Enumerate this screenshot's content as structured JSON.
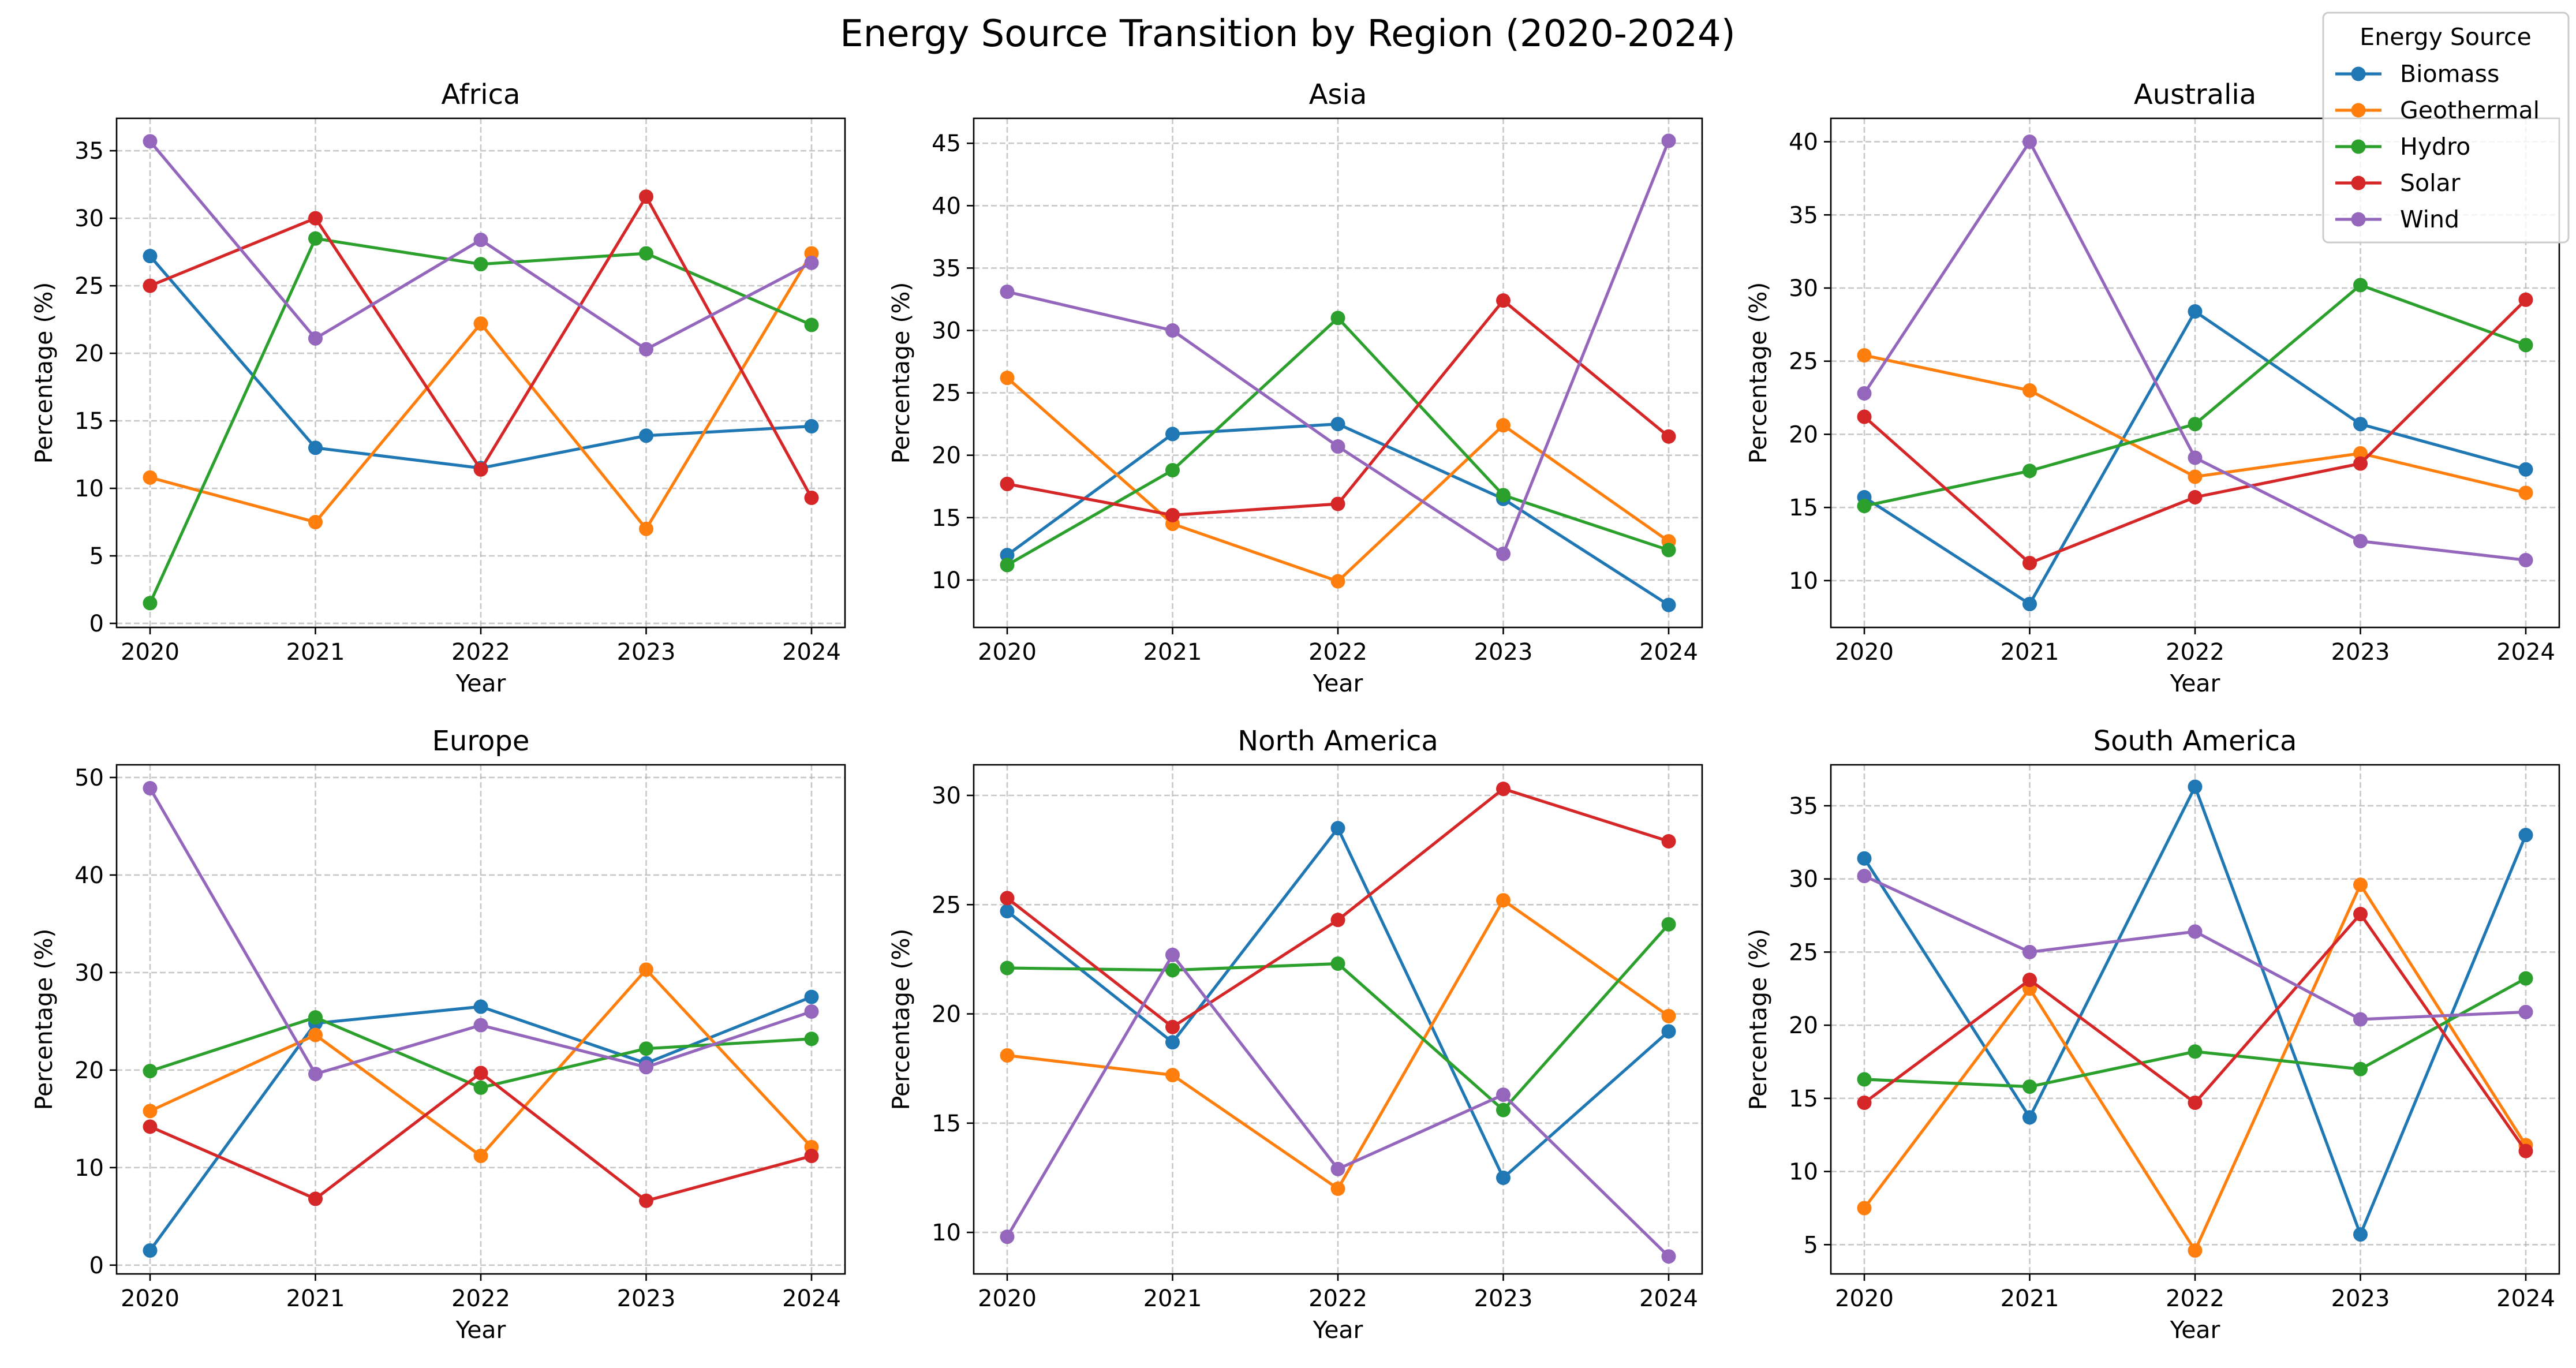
{
  "figure": {
    "title": "Energy Source Transition by Region (2020-2024)"
  },
  "legend": {
    "title": "Energy Source",
    "placement": "top-right",
    "entries": [
      "Biomass",
      "Geothermal",
      "Hydro",
      "Solar",
      "Wind"
    ]
  },
  "colors": {
    "Biomass": "#1f77b4",
    "Geothermal": "#ff7f0e",
    "Hydro": "#2ca02c",
    "Solar": "#d62728",
    "Wind": "#9467bd",
    "grid": "#b0b0b0"
  },
  "chart_data": [
    {
      "type": "line",
      "title": "Africa",
      "xlabel": "Year",
      "ylabel": "Percentage (%)",
      "x": [
        2020,
        2021,
        2022,
        2023,
        2024
      ],
      "ylim": [
        -0.3,
        37.4
      ],
      "yticks": [
        0,
        5,
        10,
        15,
        20,
        25,
        30,
        35
      ],
      "grid": true,
      "series": [
        {
          "name": "Biomass",
          "values": [
            27.2,
            13.0,
            11.5,
            13.9,
            14.6
          ]
        },
        {
          "name": "Geothermal",
          "values": [
            10.8,
            7.5,
            22.2,
            7.0,
            27.4
          ]
        },
        {
          "name": "Hydro",
          "values": [
            1.5,
            28.5,
            26.6,
            27.4,
            22.1
          ]
        },
        {
          "name": "Solar",
          "values": [
            25.0,
            30.0,
            11.4,
            31.6,
            9.3
          ]
        },
        {
          "name": "Wind",
          "values": [
            35.7,
            21.1,
            28.4,
            20.3,
            26.7
          ]
        }
      ]
    },
    {
      "type": "line",
      "title": "Asia",
      "xlabel": "Year",
      "ylabel": "Percentage (%)",
      "x": [
        2020,
        2021,
        2022,
        2023,
        2024
      ],
      "ylim": [
        6.2,
        47.0
      ],
      "yticks": [
        10,
        15,
        20,
        25,
        30,
        35,
        40,
        45
      ],
      "grid": true,
      "series": [
        {
          "name": "Biomass",
          "values": [
            12.0,
            21.7,
            22.5,
            16.5,
            8.0
          ]
        },
        {
          "name": "Geothermal",
          "values": [
            26.2,
            14.5,
            9.9,
            22.4,
            13.1
          ]
        },
        {
          "name": "Hydro",
          "values": [
            11.2,
            18.8,
            31.0,
            16.8,
            12.4
          ]
        },
        {
          "name": "Solar",
          "values": [
            17.7,
            15.2,
            16.1,
            32.4,
            21.5
          ]
        },
        {
          "name": "Wind",
          "values": [
            33.1,
            30.0,
            20.7,
            12.1,
            45.2
          ]
        }
      ]
    },
    {
      "type": "line",
      "title": "Australia",
      "xlabel": "Year",
      "ylabel": "Percentage (%)",
      "x": [
        2020,
        2021,
        2022,
        2023,
        2024
      ],
      "ylim": [
        6.8,
        41.6
      ],
      "yticks": [
        10,
        15,
        20,
        25,
        30,
        35,
        40
      ],
      "grid": true,
      "series": [
        {
          "name": "Biomass",
          "values": [
            15.7,
            8.4,
            28.4,
            20.7,
            17.6
          ]
        },
        {
          "name": "Geothermal",
          "values": [
            25.4,
            23.0,
            17.1,
            18.7,
            16.0
          ]
        },
        {
          "name": "Hydro",
          "values": [
            15.1,
            17.5,
            20.7,
            30.2,
            26.1
          ]
        },
        {
          "name": "Solar",
          "values": [
            21.2,
            11.2,
            15.7,
            18.0,
            29.2
          ]
        },
        {
          "name": "Wind",
          "values": [
            22.8,
            40.0,
            18.4,
            12.7,
            11.4
          ]
        }
      ]
    },
    {
      "type": "line",
      "title": "Europe",
      "xlabel": "Year",
      "ylabel": "Percentage (%)",
      "x": [
        2020,
        2021,
        2022,
        2023,
        2024
      ],
      "ylim": [
        -0.9,
        51.3
      ],
      "yticks": [
        0,
        10,
        20,
        30,
        40,
        50
      ],
      "grid": true,
      "series": [
        {
          "name": "Biomass",
          "values": [
            1.5,
            24.8,
            26.5,
            20.7,
            27.5
          ]
        },
        {
          "name": "Geothermal",
          "values": [
            15.8,
            23.6,
            11.2,
            30.3,
            12.1
          ]
        },
        {
          "name": "Hydro",
          "values": [
            19.9,
            25.4,
            18.2,
            22.2,
            23.2
          ]
        },
        {
          "name": "Solar",
          "values": [
            14.2,
            6.8,
            19.7,
            6.6,
            11.2
          ]
        },
        {
          "name": "Wind",
          "values": [
            48.9,
            19.6,
            24.6,
            20.3,
            26.0
          ]
        }
      ]
    },
    {
      "type": "line",
      "title": "North America",
      "xlabel": "Year",
      "ylabel": "Percentage (%)",
      "x": [
        2020,
        2021,
        2022,
        2023,
        2024
      ],
      "ylim": [
        8.1,
        31.4
      ],
      "yticks": [
        10,
        15,
        20,
        25,
        30
      ],
      "grid": true,
      "series": [
        {
          "name": "Biomass",
          "values": [
            24.7,
            18.7,
            28.5,
            12.5,
            19.2
          ]
        },
        {
          "name": "Geothermal",
          "values": [
            18.1,
            17.2,
            12.0,
            25.2,
            19.9
          ]
        },
        {
          "name": "Hydro",
          "values": [
            22.1,
            22.0,
            22.3,
            15.6,
            24.1
          ]
        },
        {
          "name": "Solar",
          "values": [
            25.3,
            19.4,
            24.3,
            30.3,
            27.9
          ]
        },
        {
          "name": "Wind",
          "values": [
            9.8,
            22.7,
            12.9,
            16.3,
            8.9
          ]
        }
      ]
    },
    {
      "type": "line",
      "title": "South America",
      "xlabel": "Year",
      "ylabel": "Percentage (%)",
      "x": [
        2020,
        2021,
        2022,
        2023,
        2024
      ],
      "ylim": [
        3.0,
        37.8
      ],
      "yticks": [
        5,
        10,
        15,
        20,
        25,
        30,
        35
      ],
      "grid": true,
      "series": [
        {
          "name": "Biomass",
          "values": [
            31.4,
            13.7,
            36.3,
            5.7,
            33.0
          ]
        },
        {
          "name": "Geothermal",
          "values": [
            7.5,
            22.5,
            4.6,
            29.6,
            11.8
          ]
        },
        {
          "name": "Hydro",
          "values": [
            16.3,
            15.8,
            18.2,
            17.0,
            23.2
          ]
        },
        {
          "name": "Solar",
          "values": [
            14.7,
            23.1,
            14.7,
            27.6,
            11.4
          ]
        },
        {
          "name": "Wind",
          "values": [
            30.2,
            25.0,
            26.4,
            20.4,
            20.9
          ]
        }
      ]
    }
  ]
}
